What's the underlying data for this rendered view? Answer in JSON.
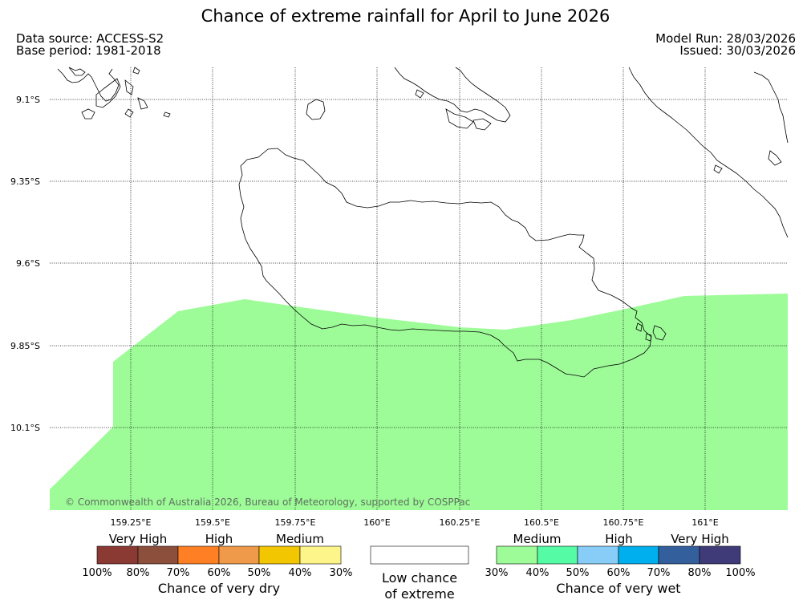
{
  "title": "Chance of extreme rainfall for April to June 2026",
  "header": {
    "data_source": "Data source: ACCESS-S2",
    "base_period": "Base period: 1981-2018",
    "model_run": "Model Run: 28/03/2026",
    "issued": "Issued: 30/03/2026"
  },
  "map": {
    "lat_labels": [
      "9.1°S",
      "9.35°S",
      "9.6°S",
      "9.85°S",
      "10.1°S"
    ],
    "lon_labels": [
      "159.25°E",
      "159.5°E",
      "159.75°E",
      "160°E",
      "160.25°E",
      "160.5°E",
      "160.75°E",
      "161°E"
    ],
    "copyright": "© Commonwealth of Australia 2026, Bureau of Meteorology, supported by COSPPac",
    "shaded_category": "Chance of very wet 30%-40%",
    "shade_color": "#9dfc98"
  },
  "legend": {
    "dry": {
      "levels": [
        "Very High",
        "High",
        "Medium"
      ],
      "percent_labels": [
        "100%",
        "80%",
        "70%",
        "60%",
        "50%",
        "40%",
        "30%"
      ],
      "colors": [
        "#8a3a33",
        "#8c4f3c",
        "#ff7f24",
        "#ee9a4a",
        "#f2c600",
        "#fdf58a"
      ],
      "caption": "Chance of very dry"
    },
    "neutral": {
      "line1": "Low chance",
      "line2": "of extreme",
      "color": "#ffffff"
    },
    "wet": {
      "levels": [
        "Medium",
        "High",
        "Very High"
      ],
      "percent_labels": [
        "30%",
        "40%",
        "50%",
        "60%",
        "70%",
        "80%",
        "100%"
      ],
      "colors": [
        "#9dfc98",
        "#55fca5",
        "#87cdf7",
        "#00b0ee",
        "#345f9d",
        "#3f3b78"
      ],
      "caption": "Chance of very wet"
    }
  }
}
